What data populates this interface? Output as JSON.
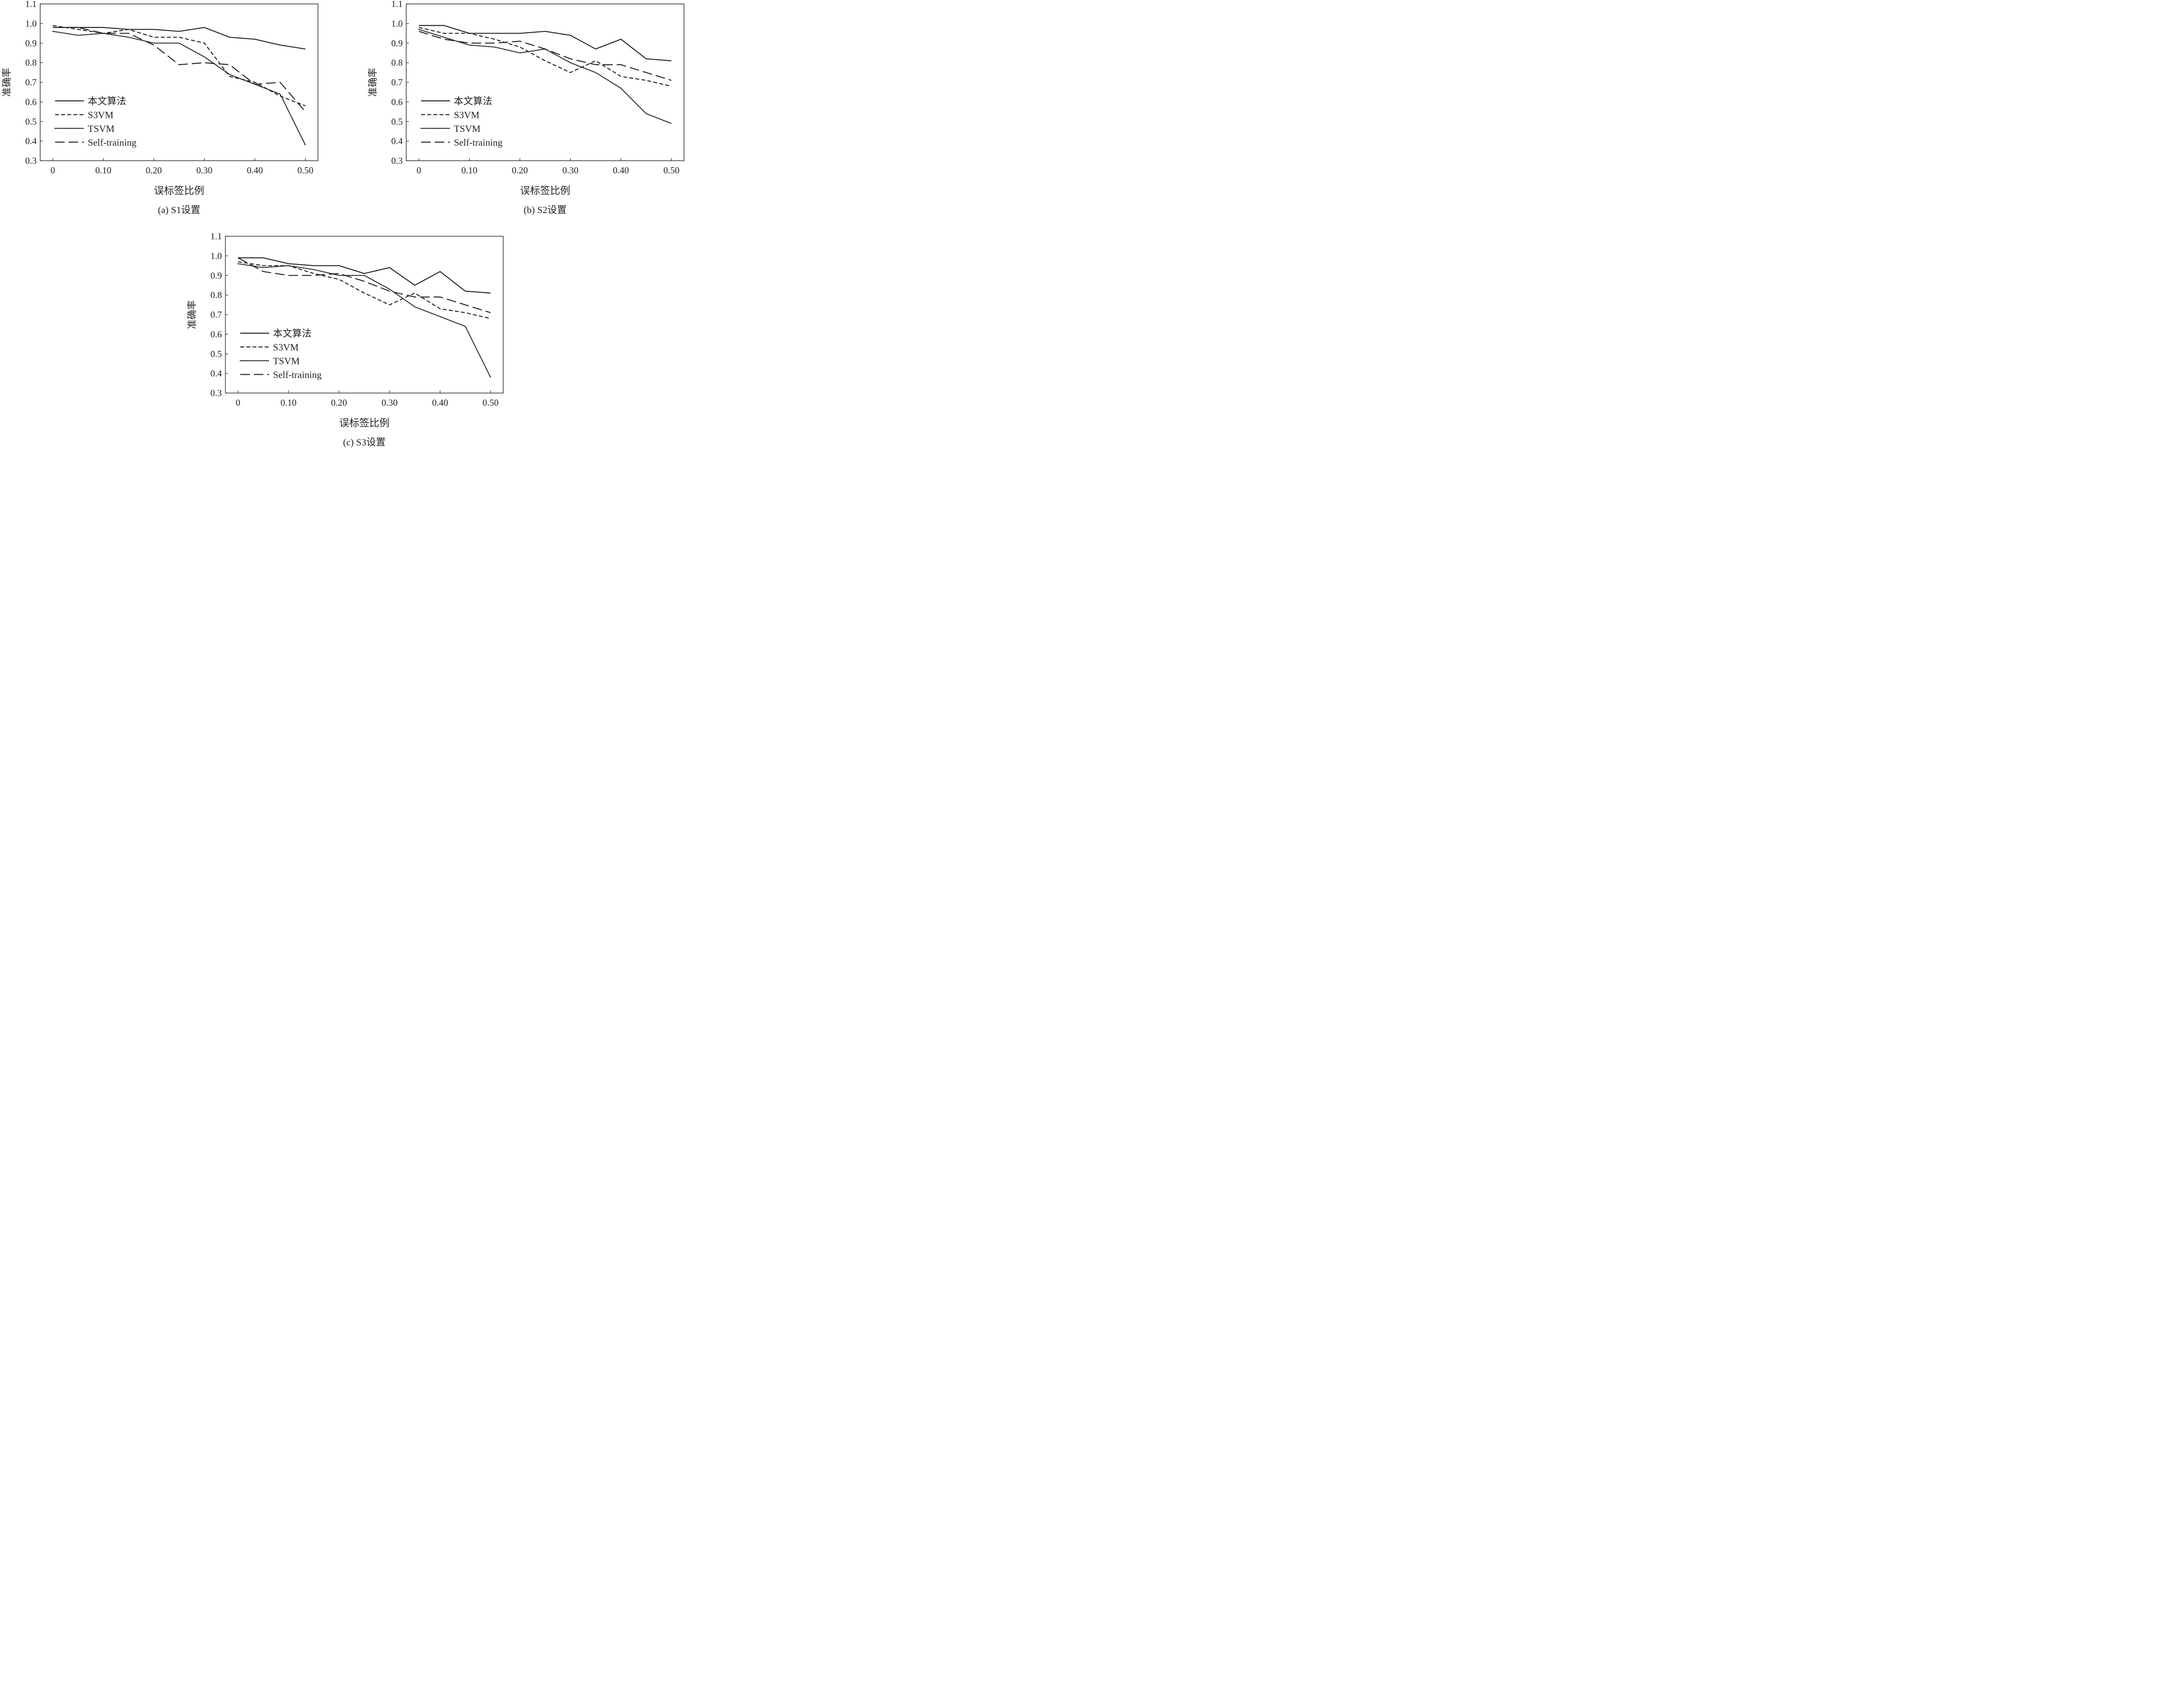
{
  "chart_data": [
    {
      "type": "line",
      "caption": "(a) S1设置",
      "xlabel": "误标签比例",
      "ylabel": "准确率",
      "xlim": [
        -0.025,
        0.525
      ],
      "ylim": [
        0.3,
        1.1
      ],
      "x_ticks": [
        {
          "value": 0,
          "label": "0"
        },
        {
          "value": 0.1,
          "label": "0.10"
        },
        {
          "value": 0.2,
          "label": "0.20"
        },
        {
          "value": 0.3,
          "label": "0.30"
        },
        {
          "value": 0.4,
          "label": "0.40"
        },
        {
          "value": 0.5,
          "label": "0.50"
        }
      ],
      "y_ticks": [
        "0.3",
        "0.4",
        "0.5",
        "0.6",
        "0.7",
        "0.8",
        "0.9",
        "1.0",
        "1.1"
      ],
      "legend": "bottom-left",
      "grid": false,
      "x": [
        0,
        0.05,
        0.1,
        0.15,
        0.2,
        0.25,
        0.3,
        0.35,
        0.4,
        0.45,
        0.5
      ],
      "series": [
        {
          "name": "本文算法",
          "style": "solid",
          "values": [
            0.98,
            0.98,
            0.98,
            0.97,
            0.97,
            0.96,
            0.98,
            0.93,
            0.92,
            0.89,
            0.87
          ]
        },
        {
          "name": "S3VM",
          "style": "dashed",
          "values": [
            0.99,
            0.97,
            0.95,
            0.97,
            0.93,
            0.93,
            0.9,
            0.73,
            0.7,
            0.63,
            0.58
          ]
        },
        {
          "name": "TSVM",
          "style": "dotted",
          "values": [
            0.96,
            0.94,
            0.95,
            0.93,
            0.9,
            0.9,
            0.83,
            0.74,
            0.69,
            0.64,
            0.38
          ]
        },
        {
          "name": "Self-training",
          "style": "longdash",
          "values": [
            0.98,
            0.98,
            0.95,
            0.95,
            0.89,
            0.79,
            0.8,
            0.79,
            0.69,
            0.7,
            0.55
          ]
        }
      ]
    },
    {
      "type": "line",
      "caption": "(b) S2设置",
      "xlabel": "误标签比例",
      "ylabel": "准确率",
      "xlim": [
        -0.025,
        0.525
      ],
      "ylim": [
        0.3,
        1.1
      ],
      "x_ticks": [
        {
          "value": 0,
          "label": "0"
        },
        {
          "value": 0.1,
          "label": "0.10"
        },
        {
          "value": 0.2,
          "label": "0.20"
        },
        {
          "value": 0.3,
          "label": "0.30"
        },
        {
          "value": 0.4,
          "label": "0.40"
        },
        {
          "value": 0.5,
          "label": "0.50"
        }
      ],
      "y_ticks": [
        "0.3",
        "0.4",
        "0.5",
        "0.6",
        "0.7",
        "0.8",
        "0.9",
        "1.0",
        "1.1"
      ],
      "legend": "bottom-left",
      "grid": false,
      "x": [
        0,
        0.05,
        0.1,
        0.15,
        0.2,
        0.25,
        0.3,
        0.35,
        0.4,
        0.45,
        0.5
      ],
      "series": [
        {
          "name": "本文算法",
          "style": "solid",
          "values": [
            0.99,
            0.99,
            0.95,
            0.95,
            0.95,
            0.96,
            0.94,
            0.87,
            0.92,
            0.82,
            0.81
          ]
        },
        {
          "name": "S3VM",
          "style": "dashed",
          "values": [
            0.98,
            0.95,
            0.95,
            0.92,
            0.88,
            0.81,
            0.75,
            0.81,
            0.73,
            0.71,
            0.68
          ]
        },
        {
          "name": "TSVM",
          "style": "dotted",
          "values": [
            0.97,
            0.93,
            0.89,
            0.88,
            0.85,
            0.87,
            0.8,
            0.75,
            0.67,
            0.54,
            0.49
          ]
        },
        {
          "name": "Self-training",
          "style": "longdash",
          "values": [
            0.96,
            0.92,
            0.9,
            0.9,
            0.91,
            0.87,
            0.82,
            0.79,
            0.79,
            0.75,
            0.71
          ]
        }
      ]
    },
    {
      "type": "line",
      "caption": "(c) S3设置",
      "xlabel": "误标签比例",
      "ylabel": "准确率",
      "xlim": [
        -0.025,
        0.525
      ],
      "ylim": [
        0.3,
        1.1
      ],
      "x_ticks": [
        {
          "value": 0,
          "label": "0"
        },
        {
          "value": 0.1,
          "label": "0.10"
        },
        {
          "value": 0.2,
          "label": "0.20"
        },
        {
          "value": 0.3,
          "label": "0.30"
        },
        {
          "value": 0.4,
          "label": "0.40"
        },
        {
          "value": 0.5,
          "label": "0.50"
        }
      ],
      "y_ticks": [
        "0.3",
        "0.4",
        "0.5",
        "0.6",
        "0.7",
        "0.8",
        "0.9",
        "1.0",
        "1.1"
      ],
      "legend": "bottom-left",
      "grid": false,
      "x": [
        0,
        0.05,
        0.1,
        0.15,
        0.2,
        0.25,
        0.3,
        0.35,
        0.4,
        0.45,
        0.5
      ],
      "series": [
        {
          "name": "本文算法",
          "style": "solid",
          "values": [
            0.99,
            0.99,
            0.96,
            0.95,
            0.95,
            0.91,
            0.94,
            0.85,
            0.92,
            0.82,
            0.81
          ]
        },
        {
          "name": "S3VM",
          "style": "dashed",
          "values": [
            0.97,
            0.95,
            0.95,
            0.91,
            0.88,
            0.81,
            0.75,
            0.81,
            0.73,
            0.71,
            0.68
          ]
        },
        {
          "name": "TSVM",
          "style": "dotted",
          "values": [
            0.96,
            0.94,
            0.95,
            0.93,
            0.9,
            0.9,
            0.83,
            0.74,
            0.69,
            0.64,
            0.38
          ]
        },
        {
          "name": "Self-training",
          "style": "longdash",
          "values": [
            0.99,
            0.92,
            0.9,
            0.9,
            0.91,
            0.87,
            0.82,
            0.79,
            0.79,
            0.75,
            0.71
          ]
        }
      ]
    }
  ]
}
